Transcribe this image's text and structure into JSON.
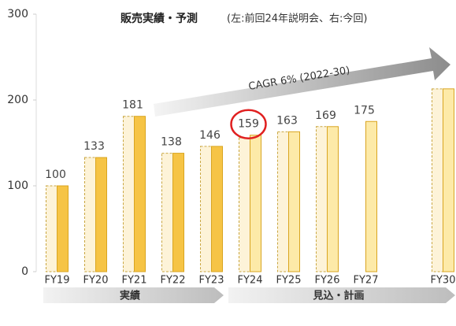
{
  "chart_data": {
    "type": "bar",
    "title": "販売実績・予測",
    "subtitle": "(左:前回24年説明会、右:今回)",
    "categories": [
      "FY19",
      "FY20",
      "FY21",
      "FY22",
      "FY23",
      "FY24",
      "FY25",
      "FY26",
      "FY27",
      null,
      "FY30"
    ],
    "series": [
      {
        "color": "#fdf3d8",
        "edge": "#c9a640",
        "values": [
          100,
          133,
          181,
          138,
          146,
          156,
          163,
          169,
          null,
          null,
          213
        ]
      },
      {
        "colors": [
          "#f6c445",
          "#f6c445",
          "#f6c445",
          "#f6c445",
          "#f6c445",
          "#fdeaa8",
          "#fdeaa8",
          "#fdeaa8",
          "#fdeaa8",
          null,
          "#fdeaa8"
        ],
        "edge": "#d9a520",
        "values": [
          100,
          133,
          181,
          138,
          146,
          159,
          163,
          169,
          175,
          null,
          213
        ],
        "value_labels": [
          "100",
          "133",
          "181",
          "138",
          "146",
          "159",
          "163",
          "169",
          "175",
          null,
          null
        ]
      }
    ],
    "ylim": [
      0,
      300
    ],
    "yticks": [
      0,
      100,
      200,
      300
    ],
    "annotation": "CAGR 6% (2022-30)",
    "highlight_index": 5,
    "phases": [
      "実績",
      "見込・計画"
    ]
  }
}
